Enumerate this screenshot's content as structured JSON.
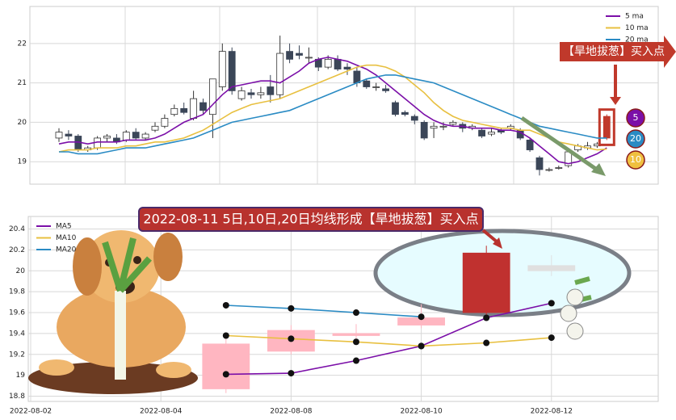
{
  "chart_data": [
    {
      "type": "candlestick",
      "annotation": "【旱地拔葱】买入点",
      "open": [
        19.6,
        19.7,
        19.65,
        19.3,
        19.35,
        19.6,
        19.6,
        19.55,
        19.75,
        19.6,
        19.8,
        19.9,
        20.2,
        20.35,
        20.1,
        20.5,
        20.2,
        20.9,
        21.8,
        20.6,
        20.75,
        20.7,
        20.9,
        20.7,
        21.8,
        21.75,
        21.65,
        21.6,
        21.4,
        21.6,
        21.4,
        21.3,
        21.05,
        20.9,
        20.85,
        20.5,
        20.25,
        20.15,
        20.0,
        19.85,
        19.9,
        19.95,
        19.95,
        19.85,
        19.8,
        19.7,
        19.8,
        19.85,
        19.8,
        19.55,
        19.1,
        18.8,
        18.85,
        18.9,
        19.3,
        19.35,
        19.4,
        19.6
      ],
      "high": [
        19.85,
        19.8,
        19.7,
        19.4,
        19.65,
        19.7,
        19.7,
        19.8,
        19.85,
        19.75,
        20.0,
        20.2,
        20.45,
        20.5,
        20.8,
        20.6,
        21.1,
        22.0,
        21.9,
        20.9,
        20.85,
        20.9,
        21.2,
        22.2,
        22.0,
        21.95,
        21.9,
        21.65,
        21.7,
        21.7,
        21.5,
        21.4,
        21.1,
        21.0,
        20.95,
        20.55,
        20.3,
        20.2,
        20.05,
        20.0,
        20.0,
        20.05,
        20.0,
        19.95,
        19.85,
        19.85,
        19.85,
        19.95,
        19.85,
        19.6,
        19.15,
        18.85,
        18.9,
        19.35,
        19.45,
        19.5,
        19.5,
        20.2
      ],
      "low": [
        19.5,
        19.55,
        19.25,
        19.25,
        19.3,
        19.5,
        19.45,
        19.5,
        19.55,
        19.55,
        19.75,
        19.85,
        20.15,
        20.2,
        20.05,
        20.2,
        19.6,
        20.8,
        20.7,
        20.55,
        20.6,
        20.6,
        20.5,
        20.6,
        21.5,
        21.6,
        21.5,
        21.3,
        21.35,
        21.3,
        21.2,
        20.9,
        20.85,
        20.8,
        20.75,
        20.15,
        20.15,
        19.95,
        19.55,
        19.6,
        19.8,
        19.9,
        19.75,
        19.8,
        19.6,
        19.65,
        19.7,
        19.8,
        19.55,
        19.25,
        18.65,
        18.75,
        18.8,
        18.85,
        19.25,
        19.3,
        19.35,
        19.55
      ],
      "close": [
        19.75,
        19.65,
        19.3,
        19.35,
        19.6,
        19.65,
        19.5,
        19.75,
        19.6,
        19.7,
        19.9,
        20.1,
        20.35,
        20.25,
        20.6,
        20.3,
        21.1,
        21.8,
        20.8,
        20.8,
        20.7,
        20.75,
        20.7,
        21.75,
        21.6,
        21.7,
        21.65,
        21.4,
        21.6,
        21.35,
        21.35,
        21.0,
        20.9,
        20.9,
        20.8,
        20.2,
        20.2,
        20.05,
        19.6,
        19.9,
        19.9,
        20.0,
        19.85,
        19.9,
        19.65,
        19.75,
        19.75,
        19.9,
        19.6,
        19.3,
        18.8,
        18.8,
        18.85,
        19.25,
        19.4,
        19.4,
        19.45,
        20.15
      ],
      "up_color": "#ffffff",
      "down_color": "#3b4658",
      "highlight_color": "#c0392b",
      "series": [
        {
          "name": "5 ma",
          "color": "#7b0fa8",
          "values": [
            19.45,
            19.5,
            19.5,
            19.45,
            19.5,
            19.5,
            19.5,
            19.55,
            19.55,
            19.55,
            19.6,
            19.7,
            19.85,
            20.0,
            20.1,
            20.2,
            20.45,
            20.7,
            20.9,
            20.95,
            21.0,
            21.05,
            21.05,
            21.0,
            21.15,
            21.3,
            21.5,
            21.6,
            21.65,
            21.6,
            21.55,
            21.45,
            21.35,
            21.2,
            21.0,
            20.8,
            20.6,
            20.4,
            20.2,
            20.05,
            19.95,
            19.9,
            19.9,
            19.85,
            19.85,
            19.85,
            19.8,
            19.8,
            19.75,
            19.6,
            19.4,
            19.2,
            19.0,
            18.95,
            19.0,
            19.1,
            19.2,
            19.35
          ]
        },
        {
          "name": "10 ma",
          "color": "#e8c040",
          "values": [
            19.25,
            19.3,
            19.3,
            19.3,
            19.35,
            19.35,
            19.35,
            19.4,
            19.4,
            19.45,
            19.5,
            19.5,
            19.55,
            19.6,
            19.7,
            19.8,
            19.95,
            20.1,
            20.25,
            20.35,
            20.45,
            20.5,
            20.55,
            20.6,
            20.7,
            20.8,
            20.9,
            21.0,
            21.1,
            21.2,
            21.3,
            21.4,
            21.45,
            21.45,
            21.4,
            21.3,
            21.15,
            20.95,
            20.75,
            20.5,
            20.3,
            20.15,
            20.05,
            20.0,
            19.95,
            19.9,
            19.85,
            19.85,
            19.8,
            19.8,
            19.7,
            19.6,
            19.5,
            19.45,
            19.4,
            19.35,
            19.3,
            19.32
          ]
        },
        {
          "name": "20 ma",
          "color": "#2a8bc4",
          "values": [
            19.25,
            19.25,
            19.2,
            19.2,
            19.2,
            19.25,
            19.3,
            19.35,
            19.35,
            19.35,
            19.4,
            19.45,
            19.5,
            19.55,
            19.6,
            19.7,
            19.8,
            19.9,
            20.0,
            20.05,
            20.1,
            20.15,
            20.2,
            20.25,
            20.3,
            20.4,
            20.5,
            20.6,
            20.7,
            20.8,
            20.9,
            21.0,
            21.1,
            21.15,
            21.2,
            21.2,
            21.15,
            21.1,
            21.05,
            21.0,
            20.9,
            20.8,
            20.7,
            20.6,
            20.5,
            20.4,
            20.3,
            20.2,
            20.1,
            20.0,
            19.9,
            19.85,
            19.8,
            19.75,
            19.7,
            19.65,
            19.6,
            19.6
          ]
        }
      ],
      "badges": [
        {
          "label": "5",
          "color": "#7b0fa8"
        },
        {
          "label": "20",
          "color": "#2a8bc4"
        },
        {
          "label": "10",
          "color": "#f0c040"
        }
      ],
      "ylim": [
        18.43,
        22.94
      ],
      "yticks": [
        19,
        20,
        21,
        22
      ],
      "grid": true,
      "legend": "upper-right"
    },
    {
      "type": "candlestick",
      "title": "2022-08-11 5日,10日,20日均线形成【旱地拔葱】买入点",
      "categories": [
        "2022-08-02",
        null,
        "2022-08-04",
        null,
        "2022-08-08",
        null,
        "2022-08-10",
        null,
        "2022-08-12"
      ],
      "open": [
        null,
        null,
        null,
        18.87,
        19.23,
        19.38,
        19.48,
        19.6,
        20.0
      ],
      "high": [
        null,
        null,
        null,
        19.35,
        19.48,
        19.49,
        19.68,
        20.24,
        20.15
      ],
      "low": [
        null,
        null,
        null,
        18.83,
        19.2,
        19.32,
        19.45,
        19.58,
        19.95
      ],
      "close": [
        null,
        null,
        null,
        19.3,
        19.43,
        19.4,
        19.55,
        20.17,
        20.05
      ],
      "candle_colors": [
        null,
        null,
        null,
        "#ffb6c1",
        "#ffb6c1",
        "#ffb6c1",
        "#ffb6c1",
        "#c0312f",
        "#e0e0e0"
      ],
      "series": [
        {
          "name": "MA5",
          "color": "#7b0fa8",
          "values": [
            null,
            null,
            null,
            19.01,
            19.02,
            19.14,
            19.28,
            19.55,
            19.69
          ]
        },
        {
          "name": "MA10",
          "color": "#e8c040",
          "values": [
            null,
            null,
            null,
            19.38,
            19.35,
            19.32,
            19.28,
            19.31,
            19.36
          ]
        },
        {
          "name": "MA20",
          "color": "#2a8bc4",
          "values": [
            null,
            null,
            null,
            19.67,
            19.64,
            19.6,
            19.56,
            null,
            null
          ]
        }
      ],
      "dots": true,
      "ylim": [
        18.75,
        20.52
      ],
      "yticks": [
        18.8,
        19.0,
        19.2,
        19.4,
        19.6,
        19.8,
        20.0,
        20.2,
        20.4
      ],
      "grid": true,
      "legend": "upper-left"
    }
  ]
}
